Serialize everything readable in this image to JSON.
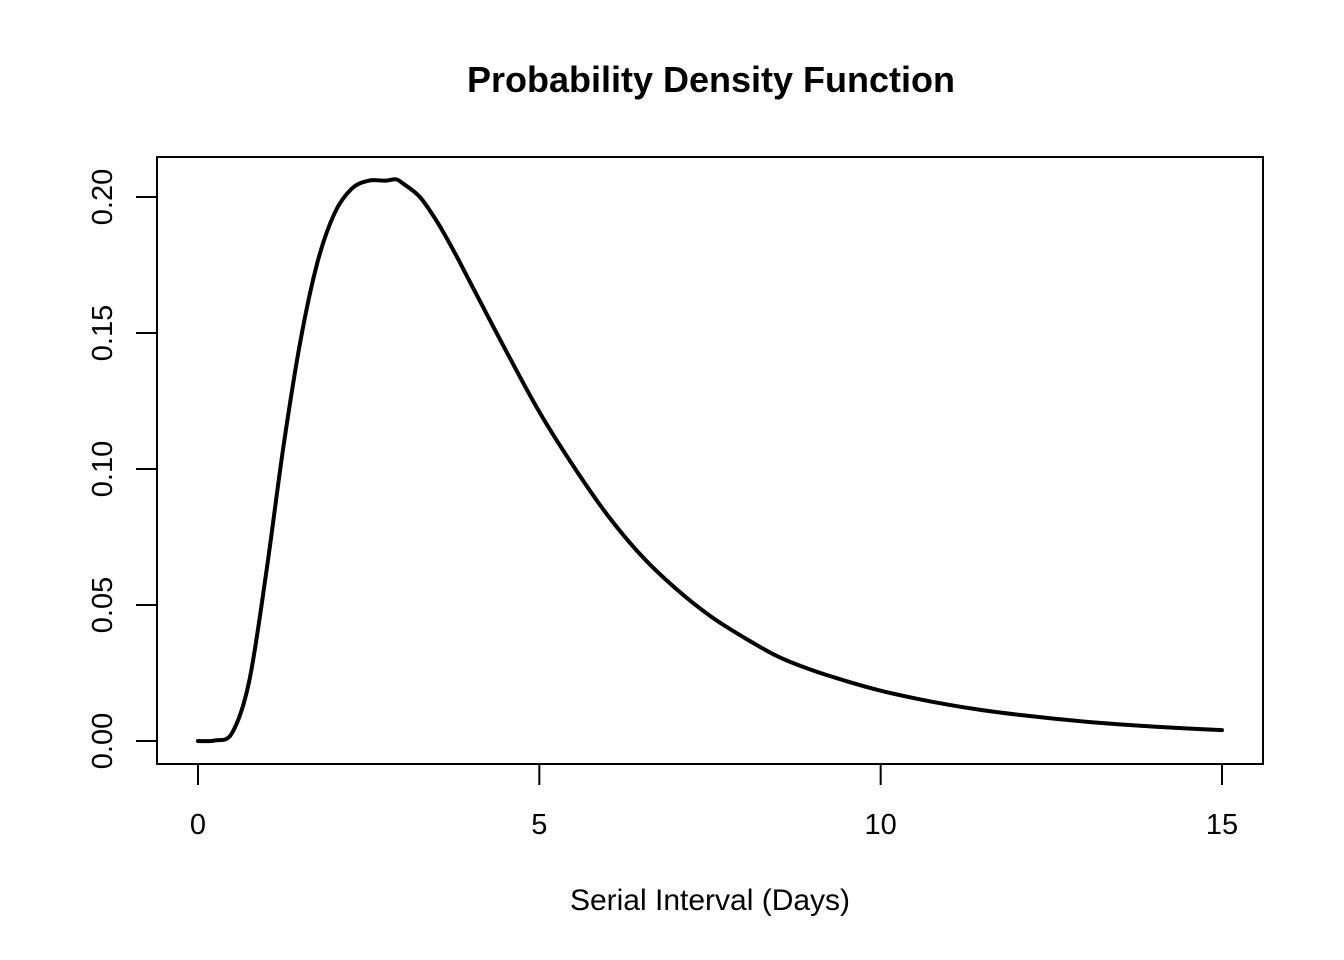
{
  "chart_data": {
    "type": "line",
    "title": "Probability Density Function",
    "xlabel": "Serial Interval (Days)",
    "ylabel": "",
    "xlim": [
      0,
      15
    ],
    "ylim": [
      0,
      0.2
    ],
    "x_ticks": [
      0,
      5,
      10,
      15
    ],
    "x_tick_labels": [
      "0",
      "5",
      "10",
      "15"
    ],
    "y_ticks": [
      0,
      0.05,
      0.1,
      0.15,
      0.2
    ],
    "y_tick_labels": [
      "0.00",
      "0.05",
      "0.10",
      "0.15",
      "0.20"
    ],
    "grid": false,
    "series": [
      {
        "color": "#000000",
        "x": [
          0,
          0.25,
          0.5,
          0.75,
          1,
          1.25,
          1.5,
          1.75,
          2,
          2.25,
          2.5,
          2.75,
          2.9,
          3,
          3.25,
          3.5,
          3.75,
          4,
          4.5,
          5,
          5.5,
          6,
          6.5,
          7,
          7.5,
          8,
          8.5,
          9,
          9.5,
          10,
          10.5,
          11,
          11.5,
          12,
          12.5,
          13,
          13.5,
          14,
          14.5,
          15
        ],
        "y": [
          0,
          0.0002,
          0.003,
          0.022,
          0.062,
          0.108,
          0.147,
          0.176,
          0.194,
          0.203,
          0.206,
          0.206,
          0.2065,
          0.205,
          0.2,
          0.191,
          0.18,
          0.168,
          0.144,
          0.121,
          0.101,
          0.083,
          0.068,
          0.056,
          0.046,
          0.038,
          0.031,
          0.026,
          0.022,
          0.0185,
          0.0157,
          0.0133,
          0.0113,
          0.0097,
          0.0083,
          0.0071,
          0.0061,
          0.0053,
          0.0046,
          0.004
        ]
      }
    ]
  }
}
